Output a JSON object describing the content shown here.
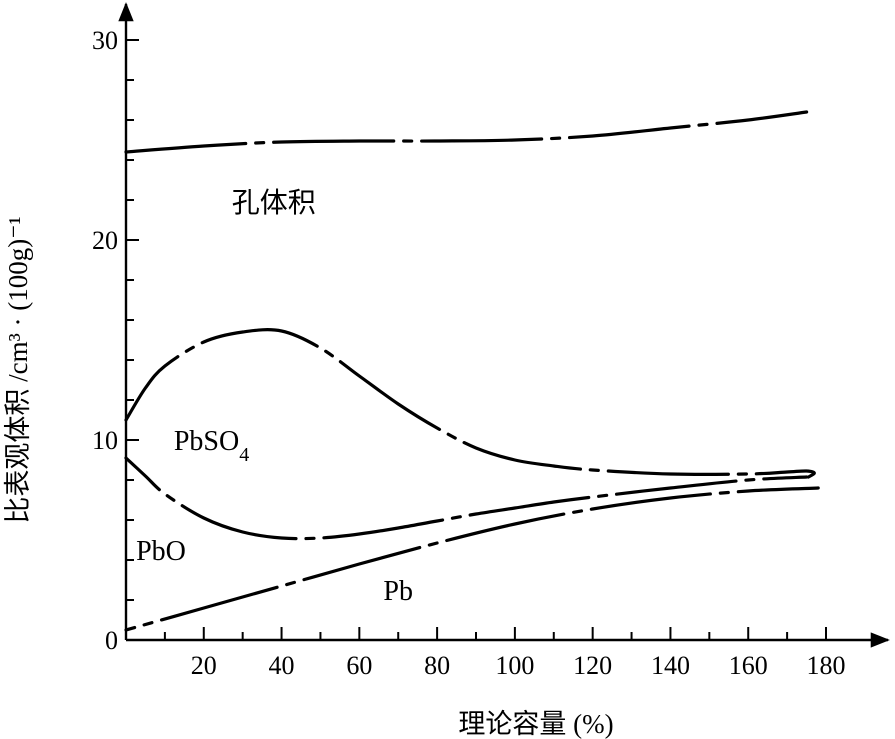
{
  "chart_data": {
    "type": "line",
    "xlabel": "理论容量 (%)",
    "ylabel": "比表观体积 /cm³ · (100g)⁻¹",
    "xlim": [
      0,
      180
    ],
    "ylim": [
      0,
      30
    ],
    "x_ticks": [
      "20",
      "40",
      "60",
      "80",
      "100",
      "120",
      "140",
      "160",
      "180"
    ],
    "y_ticks": [
      "0",
      "10",
      "20",
      "30"
    ],
    "x_minor_step": 10,
    "y_minor_step": 2,
    "grid": false,
    "region_labels": [
      {
        "text": "孔体积",
        "x": 38,
        "y": 21.4
      },
      {
        "text": "PbSO",
        "sub": "4",
        "x": 22,
        "y": 9.5
      },
      {
        "text": "PbO",
        "x": 9,
        "y": 4
      },
      {
        "text": "Pb",
        "x": 70,
        "y": 2
      }
    ],
    "series": [
      {
        "style": "dashdot",
        "points": [
          [
            0,
            24.4
          ],
          [
            20,
            24.7
          ],
          [
            40,
            24.9
          ],
          [
            60,
            24.95
          ],
          [
            80,
            24.95
          ],
          [
            100,
            25.0
          ],
          [
            120,
            25.2
          ],
          [
            140,
            25.6
          ],
          [
            160,
            26.0
          ],
          [
            175,
            26.4
          ]
        ]
      },
      {
        "style": "dashdot",
        "points": [
          [
            0,
            11.0
          ],
          [
            5,
            12.6
          ],
          [
            10,
            13.7
          ],
          [
            20,
            14.9
          ],
          [
            30,
            15.4
          ],
          [
            40,
            15.45
          ],
          [
            50,
            14.6
          ],
          [
            60,
            13.2
          ],
          [
            70,
            11.8
          ],
          [
            80,
            10.6
          ],
          [
            90,
            9.6
          ],
          [
            100,
            9.0
          ],
          [
            110,
            8.7
          ],
          [
            120,
            8.5
          ],
          [
            140,
            8.3
          ],
          [
            160,
            8.3
          ],
          [
            170,
            8.4
          ],
          [
            175,
            8.45
          ],
          [
            177,
            8.35
          ],
          [
            175.5,
            8.15
          ]
        ]
      },
      {
        "style": "dashdot",
        "points": [
          [
            0,
            9.1
          ],
          [
            5,
            8.2
          ],
          [
            10,
            7.3
          ],
          [
            20,
            6.1
          ],
          [
            30,
            5.4
          ],
          [
            40,
            5.1
          ],
          [
            50,
            5.1
          ],
          [
            60,
            5.3
          ],
          [
            70,
            5.6
          ],
          [
            80,
            5.95
          ],
          [
            90,
            6.3
          ],
          [
            100,
            6.6
          ],
          [
            110,
            6.9
          ],
          [
            120,
            7.15
          ],
          [
            140,
            7.6
          ],
          [
            160,
            8.0
          ],
          [
            175,
            8.15
          ]
        ]
      },
      {
        "style": "dashdot",
        "points": [
          [
            0,
            0.5
          ],
          [
            20,
            1.6
          ],
          [
            40,
            2.7
          ],
          [
            60,
            3.8
          ],
          [
            80,
            4.85
          ],
          [
            100,
            5.8
          ],
          [
            120,
            6.55
          ],
          [
            140,
            7.1
          ],
          [
            160,
            7.45
          ],
          [
            178,
            7.6
          ]
        ]
      }
    ]
  }
}
